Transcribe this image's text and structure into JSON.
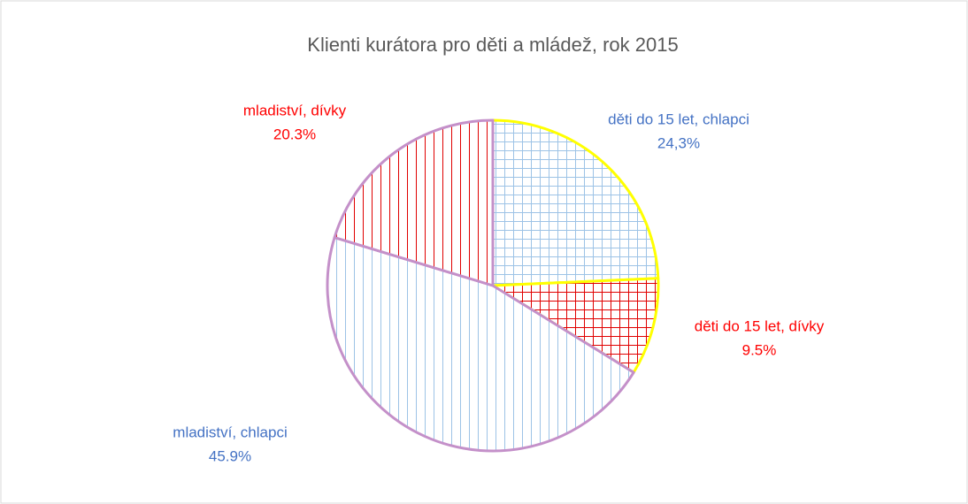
{
  "chart_data": {
    "type": "pie",
    "title": "Klienti kurátora pro děti a mládež, rok 2015",
    "categories": [
      "děti do 15 let, chlapci",
      "děti do 15 let, dívky",
      "mladiství, chlapci",
      "mladiství, dívky"
    ],
    "values": [
      24.3,
      9.5,
      45.9,
      20.3
    ],
    "value_labels": [
      "24,3%",
      "9.5%",
      "45.9%",
      "20.3%"
    ],
    "colors": [
      "#9dc3e6",
      "#e00000",
      "#9dc3e6",
      "#e00000"
    ],
    "patterns": [
      "grid",
      "grid",
      "vertical",
      "vertical"
    ],
    "edge_colors": [
      "#ffff00",
      "#ffff00",
      "#c490c9",
      "#c490c9"
    ],
    "label_colors": [
      "#4472c4",
      "#ff0000",
      "#4472c4",
      "#ff0000"
    ]
  }
}
